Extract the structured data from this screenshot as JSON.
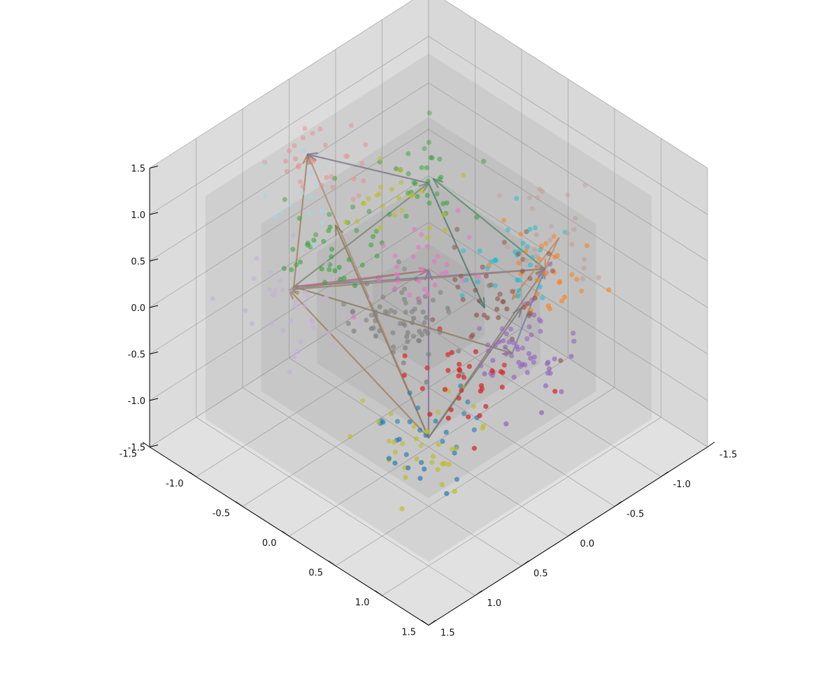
{
  "chart_data": {
    "type": "scatter",
    "projection": "3d",
    "title": "",
    "xlabel": "",
    "ylabel": "",
    "zlabel": "",
    "xlim": [
      -1.5,
      1.5
    ],
    "ylim": [
      -1.5,
      1.5
    ],
    "zlim": [
      -1.5,
      1.5
    ],
    "grid": true,
    "x_ticks": [
      "-1.5",
      "-1.0",
      "-0.5",
      "0.0",
      "0.5",
      "1.0",
      "1.5"
    ],
    "y_ticks": [
      "-1.5",
      "-1.0",
      "-0.5",
      "0.0",
      "0.5",
      "1.0",
      "1.5"
    ],
    "z_ticks": [
      "-1.5",
      "-1.0",
      "-0.5",
      "0.0",
      "0.5",
      "1.0",
      "1.5"
    ],
    "nested_cubes_half_sizes": [
      1.5,
      1.2,
      0.9,
      0.6,
      0.3
    ],
    "series": [
      {
        "color": "#1f77b4",
        "center": [
          0.0,
          0.0,
          -1.4
        ],
        "count": 30
      },
      {
        "color": "#ff7f0e",
        "center": [
          -0.95,
          0.3,
          0.0
        ],
        "count": 30
      },
      {
        "color": "#2ca02c",
        "center": [
          0.05,
          -0.95,
          0.1
        ],
        "count": 40
      },
      {
        "color": "#d62728",
        "center": [
          0.2,
          0.6,
          -0.3
        ],
        "count": 35
      },
      {
        "color": "#9467bd",
        "center": [
          -0.3,
          0.6,
          -0.3
        ],
        "count": 55
      },
      {
        "color": "#8c564b",
        "center": [
          -0.5,
          0.3,
          0.0
        ],
        "count": 40
      },
      {
        "color": "#e377c2",
        "center": [
          0.0,
          0.0,
          0.4
        ],
        "count": 30
      },
      {
        "color": "#7f7f7f",
        "center": [
          0.1,
          -0.1,
          -0.1
        ],
        "count": 70
      },
      {
        "color": "#bcbd22",
        "center": [
          0.05,
          0.1,
          -1.4
        ],
        "count": 35
      },
      {
        "color": "#17becf",
        "center": [
          -0.9,
          0.1,
          0.0
        ],
        "count": 30
      },
      {
        "color": "#e89090",
        "center": [
          0.3,
          -1.0,
          1.1
        ],
        "count": 30
      },
      {
        "color": "#2ca02c",
        "center": [
          -0.6,
          -0.55,
          0.65
        ],
        "count": 30
      },
      {
        "color": "#c49c94",
        "center": [
          -1.05,
          0.35,
          0.3
        ],
        "count": 25
      },
      {
        "color": "#9edae5",
        "center": [
          0.35,
          -0.9,
          0.8
        ],
        "count": 15
      },
      {
        "color": "#bcbd22",
        "center": [
          0.0,
          -0.4,
          0.8
        ],
        "count": 25
      },
      {
        "color": "#c5b0d5",
        "center": [
          0.7,
          -0.7,
          0.0
        ],
        "count": 40
      }
    ],
    "arrows": [
      {
        "from": [
          0.0,
          0.0,
          -1.4
        ],
        "to": [
          -0.95,
          0.3,
          0.0
        ],
        "color": "#8c7a6b"
      },
      {
        "from": [
          0.0,
          0.0,
          -1.4
        ],
        "to": [
          0.0,
          0.0,
          0.4
        ],
        "color": "#7f6f9f"
      },
      {
        "from": [
          0.0,
          0.0,
          -1.4
        ],
        "to": [
          0.6,
          -0.9,
          0.0
        ],
        "color": "#a08060"
      },
      {
        "from": [
          0.0,
          0.0,
          -1.4
        ],
        "to": [
          0.3,
          -1.0,
          1.2
        ],
        "color": "#b08a6a"
      },
      {
        "from": [
          0.0,
          0.0,
          -1.4
        ],
        "to": [
          0.2,
          -0.8,
          0.5
        ],
        "color": "#8a7a60"
      },
      {
        "from": [
          0.0,
          0.0,
          -1.4
        ],
        "to": [
          -0.5,
          0.5,
          0.0
        ],
        "color": "#777777"
      },
      {
        "from": [
          0.55,
          -0.9,
          0.0
        ],
        "to": [
          -0.95,
          0.3,
          0.0
        ],
        "color": "#7a7a9a"
      },
      {
        "from": [
          0.55,
          -0.9,
          0.0
        ],
        "to": [
          0.0,
          0.0,
          0.4
        ],
        "color": "#c06090"
      },
      {
        "from": [
          0.55,
          -0.9,
          0.0
        ],
        "to": [
          -0.3,
          0.6,
          -0.3
        ],
        "color": "#8a7a60"
      },
      {
        "from": [
          0.55,
          -0.9,
          0.0
        ],
        "to": [
          0.3,
          -1.0,
          1.2
        ],
        "color": "#a08060"
      },
      {
        "from": [
          0.55,
          -0.9,
          0.0
        ],
        "to": [
          -0.5,
          -0.5,
          0.7
        ],
        "color": "#7a8a6a"
      },
      {
        "from": [
          0.6,
          -0.9,
          0.0
        ],
        "to": [
          -0.95,
          0.3,
          0.0
        ],
        "color": "#a08070"
      },
      {
        "from": [
          -0.5,
          -0.5,
          0.7
        ],
        "to": [
          -0.3,
          0.3,
          0.0
        ],
        "color": "#4a7a6a"
      },
      {
        "from": [
          -0.5,
          -0.5,
          0.7
        ],
        "to": [
          0.3,
          -1.0,
          1.2
        ],
        "color": "#777788"
      },
      {
        "from": [
          -1.05,
          0.35,
          0.3
        ],
        "to": [
          -0.95,
          0.3,
          0.0
        ],
        "color": "#c08a60"
      },
      {
        "from": [
          -1.05,
          0.35,
          0.3
        ],
        "to": [
          -0.6,
          0.3,
          -0.1
        ],
        "color": "#c08a60"
      },
      {
        "from": [
          -0.95,
          0.3,
          0.0
        ],
        "to": [
          -0.6,
          -0.55,
          0.65
        ],
        "color": "#5a8a6a"
      },
      {
        "from": [
          -0.3,
          0.6,
          -0.3
        ],
        "to": [
          -0.95,
          0.3,
          0.0
        ],
        "color": "#7a7aaa"
      },
      {
        "from": [
          0.0,
          0.0,
          0.4
        ],
        "to": [
          0.6,
          -0.9,
          0.0
        ],
        "color": "#8a8a6a"
      }
    ]
  }
}
